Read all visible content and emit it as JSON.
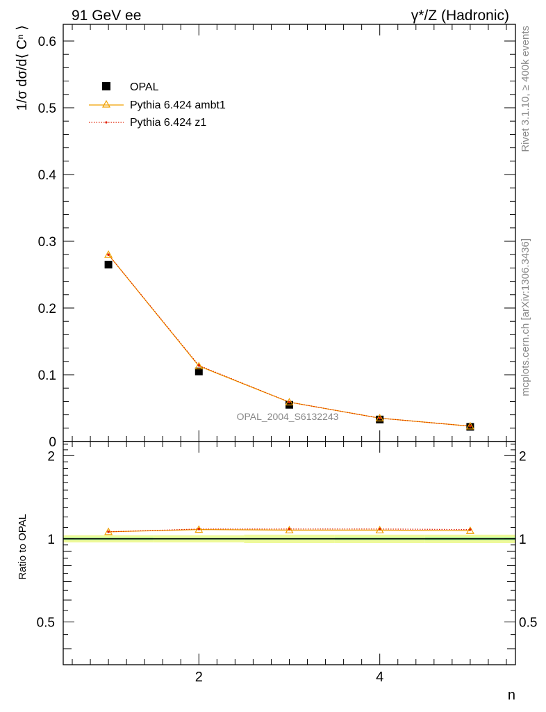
{
  "header": {
    "left": "91 GeV ee",
    "right": "γ*/Z (Hadronic)"
  },
  "side_labels": {
    "top": "Rivet 3.1.10, ≥ 400k events",
    "bottom": "mcplots.cern.ch [arXiv:1306.3436]"
  },
  "watermark": "OPAL_2004_S6132243",
  "chart_data": [
    {
      "type": "scatter",
      "panel": "main",
      "xlabel": "n",
      "ylabel": "1/σ dσ/d⟨ Cⁿ ⟩",
      "xlim": [
        0.5,
        5.5
      ],
      "ylim": [
        0,
        0.625
      ],
      "x": [
        1,
        2,
        3,
        4,
        5
      ],
      "yticks": [
        0,
        0.1,
        0.2,
        0.3,
        0.4,
        0.5,
        0.6
      ],
      "ytick_labels": [
        "0",
        "0.1",
        "0.2",
        "0.3",
        "0.4",
        "0.5",
        "0.6"
      ],
      "xticks": [
        2,
        4
      ],
      "xtick_labels": [
        "2",
        "4"
      ],
      "series": [
        {
          "name": "OPAL",
          "style": "square",
          "color": "#000000",
          "values": [
            0.265,
            0.105,
            0.055,
            0.033,
            0.022
          ]
        },
        {
          "name": "Pythia 6.424 ambt1",
          "style": "line-triangle",
          "color": "#f0a000",
          "values": [
            0.28,
            0.113,
            0.059,
            0.035,
            0.023
          ]
        },
        {
          "name": "Pythia 6.424 z1",
          "style": "dotted-dot",
          "color": "#e02000",
          "values": [
            0.28,
            0.114,
            0.059,
            0.035,
            0.023
          ]
        }
      ],
      "legend": "top-left"
    },
    {
      "type": "line",
      "panel": "ratio",
      "ylabel": "Ratio to OPAL",
      "xlabel": "n",
      "xlim": [
        0.5,
        5.5
      ],
      "ylim": [
        0.35,
        2.25
      ],
      "x": [
        1,
        2,
        3,
        4,
        5
      ],
      "yticks": [
        0.5,
        1,
        2
      ],
      "ytick_labels": [
        "0.5",
        "1",
        "2"
      ],
      "reference": 1,
      "band_inner": [
        0.01,
        0.008,
        0.008,
        0.01,
        0.012
      ],
      "band_outer": [
        0.03,
        0.03,
        0.035,
        0.035,
        0.035
      ],
      "series": [
        {
          "name": "Pythia 6.424 ambt1",
          "color": "#f0a000",
          "values": [
            1.06,
            1.08,
            1.075,
            1.075,
            1.07
          ]
        },
        {
          "name": "Pythia 6.424 z1",
          "color": "#e02000",
          "values": [
            1.06,
            1.085,
            1.085,
            1.085,
            1.08
          ]
        }
      ]
    }
  ]
}
